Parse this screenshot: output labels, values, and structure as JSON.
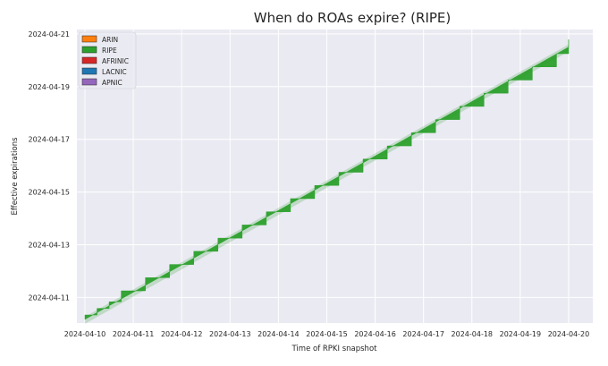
{
  "chart_data": {
    "type": "area",
    "title": "When do ROAs expire? (RIPE)",
    "xlabel": "Time of RPKI snapshot",
    "ylabel": "Effective expirations",
    "x_ticks": [
      "2024-04-10",
      "2024-04-11",
      "2024-04-12",
      "2024-04-13",
      "2024-04-14",
      "2024-04-15",
      "2024-04-16",
      "2024-04-17",
      "2024-04-18",
      "2024-04-19",
      "2024-04-20"
    ],
    "y_ticks": [
      "2024-04-11",
      "2024-04-13",
      "2024-04-15",
      "2024-04-17",
      "2024-04-19",
      "2024-04-21"
    ],
    "xlim": [
      "2024-04-09T20:00",
      "2024-04-20T12:00"
    ],
    "ylim": [
      "2024-04-10T00:40",
      "2024-04-21T04:00"
    ],
    "grid": true,
    "legend_position": "top-left",
    "legend": [
      {
        "label": "ARIN",
        "color": "#ff7f0e"
      },
      {
        "label": "RIPE",
        "color": "#2ca02c"
      },
      {
        "label": "AFRINIC",
        "color": "#d62728"
      },
      {
        "label": "LACNIC",
        "color": "#1f77b4"
      },
      {
        "label": "APNIC",
        "color": "#9467bd"
      }
    ],
    "series": [
      {
        "name": "RIPE",
        "color": "#2ca02c",
        "step_x": [
          "2024-04-10T00:00",
          "2024-04-10T06:00",
          "2024-04-10T12:00",
          "2024-04-10T18:00",
          "2024-04-11T06:00",
          "2024-04-11T18:00",
          "2024-04-12T06:00",
          "2024-04-12T18:00",
          "2024-04-13T06:00",
          "2024-04-13T18:00",
          "2024-04-14T06:00",
          "2024-04-14T18:00",
          "2024-04-15T06:00",
          "2024-04-15T18:00",
          "2024-04-16T06:00",
          "2024-04-16T18:00",
          "2024-04-17T06:00",
          "2024-04-17T18:00",
          "2024-04-18T06:00",
          "2024-04-18T18:00",
          "2024-04-19T06:00",
          "2024-04-19T18:00",
          "2024-04-20T00:00"
        ],
        "upper_expiration": [
          "2024-04-10T08:00",
          "2024-04-10T14:00",
          "2024-04-10T20:00",
          "2024-04-11T06:00",
          "2024-04-11T18:00",
          "2024-04-12T06:00",
          "2024-04-12T18:00",
          "2024-04-13T06:00",
          "2024-04-13T18:00",
          "2024-04-14T06:00",
          "2024-04-14T18:00",
          "2024-04-15T06:00",
          "2024-04-15T18:00",
          "2024-04-16T06:00",
          "2024-04-16T18:00",
          "2024-04-17T06:00",
          "2024-04-17T18:00",
          "2024-04-18T06:00",
          "2024-04-18T18:00",
          "2024-04-19T06:00",
          "2024-04-19T18:00",
          "2024-04-20T06:00",
          "2024-04-20T19:00"
        ],
        "lower_expiration_start": "2024-04-10T04:00",
        "lower_expiration_end": "2024-04-20T12:00"
      }
    ]
  }
}
